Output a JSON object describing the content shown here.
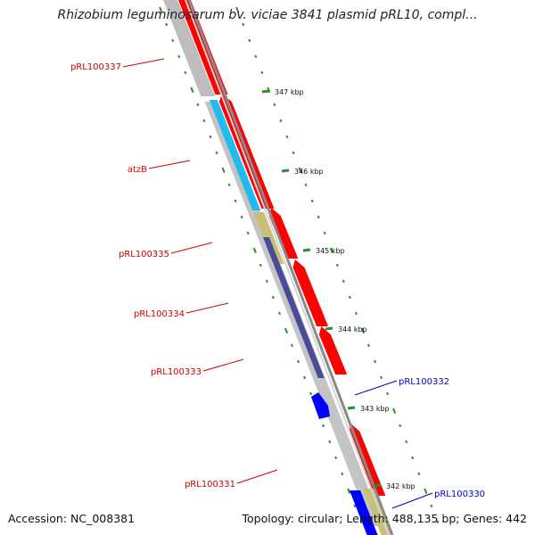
{
  "title": "Rhizobium leguminosarum bv. viciae 3841 plasmid pRL10, compl...",
  "footer": {
    "accession": "Accession: NC_008381",
    "summary": "Topology: circular; Length: 488,135 bp; Genes: 442"
  },
  "colors": {
    "gene_red": "#ff0000",
    "gene_blue": "#0000ff",
    "cds_cyan": "#22bbee",
    "cds_khaki": "#c8bf78",
    "cds_slate": "#4a4a9a",
    "cds_gray": "#bbbbbb",
    "tick_green": "#2e8b2e",
    "label_red": "#cc0000",
    "label_blue": "#0000cc"
  },
  "kbp_ticks": [
    "347 kbp",
    "346 kbp",
    "345 kbp",
    "344 kbp",
    "343 kbp",
    "342 kbp"
  ],
  "gene_labels": [
    {
      "id": "l1",
      "text": "pRL100337",
      "color": "red"
    },
    {
      "id": "l2",
      "text": "atzB",
      "color": "red"
    },
    {
      "id": "l3",
      "text": "pRL100335",
      "color": "red"
    },
    {
      "id": "l4",
      "text": "pRL100334",
      "color": "red"
    },
    {
      "id": "l5",
      "text": "pRL100333",
      "color": "red"
    },
    {
      "id": "l6",
      "text": "pRL100332",
      "color": "blue"
    },
    {
      "id": "l7",
      "text": "pRL100331",
      "color": "red"
    },
    {
      "id": "l8",
      "text": "pRL100330",
      "color": "blue"
    }
  ]
}
